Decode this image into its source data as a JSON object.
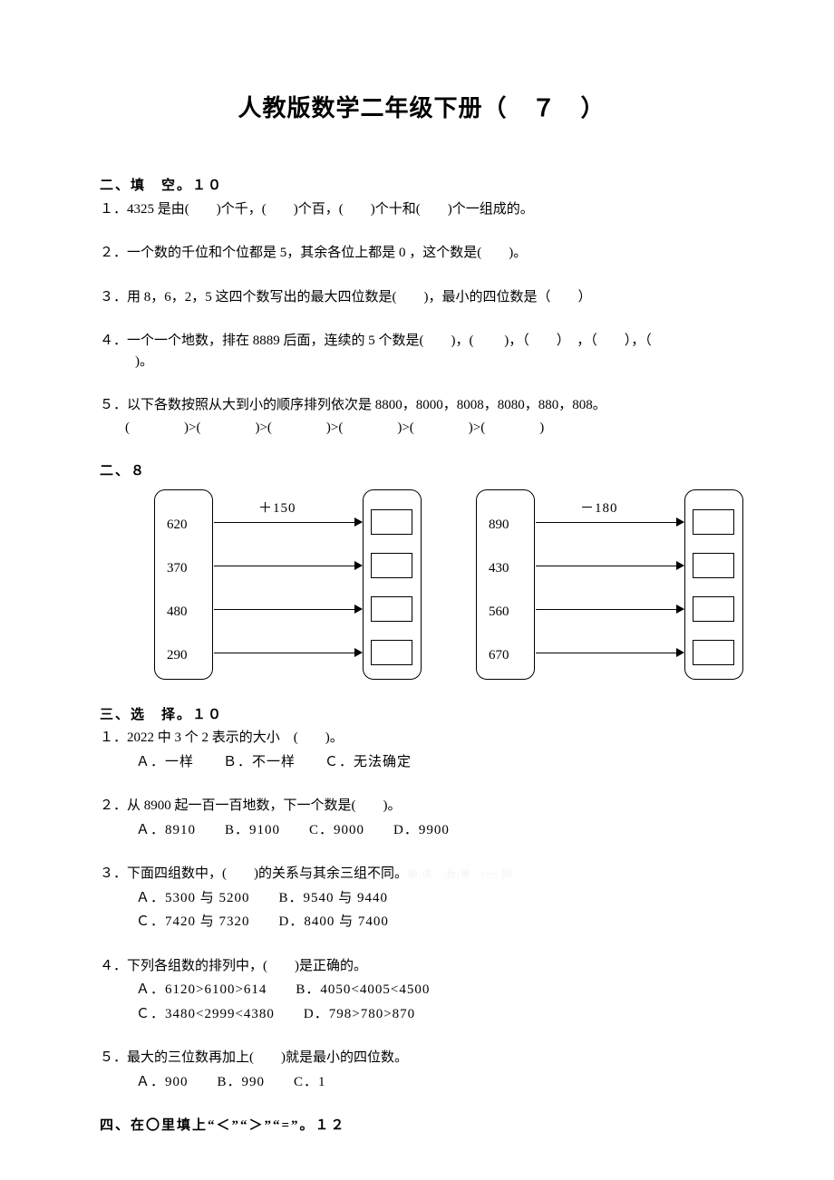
{
  "title": "人教版数学二年级下册（　７　）",
  "sec1": {
    "head": "二、填　空。１０",
    "q1": "１．4325 是由(　　)个千，(　　)个百，(　　)个十和(　　)个一组成的。",
    "q2": "２．一个数的千位和个位都是 5，其余各位上都是 0 ，这个数是(　　)。",
    "q3": "３．用 8，6，2，5 这四个数写出的最大四位数是(　　)，最小的四位数是（　　）",
    "q4a": "４．一个一个地数，排在 8889 后面，连续的 5 个数是(　　)，(　　  )，（　　）　，（　　），（",
    "q4b": "　)。",
    "q5a": "５．以下各数按照从大到小的顺序排列依次是 8800，8000，8008，8080，880，808。",
    "q5b": "(　　　　)>(　　　　)>(　　　　)>(　　　　)>(　　　　)>(　　　　)"
  },
  "sec2": {
    "head": "二、８",
    "left": {
      "op": "＋150",
      "vals": [
        "620",
        "370",
        "480",
        "290"
      ]
    },
    "right": {
      "op": "－180",
      "vals": [
        "890",
        "430",
        "560",
        "670"
      ]
    },
    "row_tops": [
      36,
      84,
      132,
      180
    ],
    "num_tops": [
      28,
      76,
      124,
      172
    ],
    "box_tops": [
      22,
      70,
      118,
      166
    ]
  },
  "sec3": {
    "head": "三、选　择。１０",
    "q1": "１．2022 中 3 个 2 表示的大小　(　　)。",
    "q1o": "Ａ．一样　　Ｂ．不一样　　Ｃ．无法确定",
    "q2": "２．从 8900 起一百一百地数，下一个数是(　　)。",
    "q2o": "Ａ．8910　　B．9100　　C．9000　　D．9900",
    "q3": "３．下面四组数中，(　　)的关系与其余三组不同。",
    "q3w": "新|课　|标|第　|一| 网",
    "q3o1": "Ａ．5300 与 5200　　B．9540 与 9440",
    "q3o2": "Ｃ．7420 与 7320　　D．8400 与 7400",
    "q4": "４．下列各组数的排列中，(　　)是正确的。",
    "q4o1": "Ａ．6120>6100>614　　B．4050<4005<4500",
    "q4o2": "Ｃ．3480<2999<4380　　D．798>780>870",
    "q5": "５．最大的三位数再加上(　　)就是最小的四位数。",
    "q5o": "Ａ．900　　B．990　　C．1"
  },
  "sec4": {
    "head": "四、在〇里填上“＜”“＞”“=”。１２"
  }
}
